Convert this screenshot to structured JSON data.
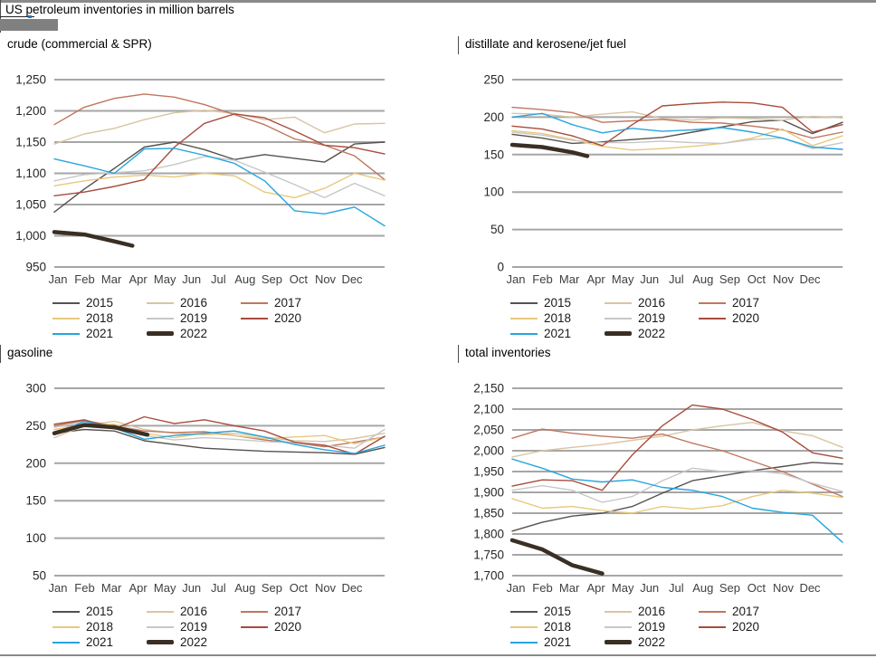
{
  "page": {
    "title": "US petroleum inventories in million barrels"
  },
  "months": [
    "Jan",
    "Feb",
    "Mar",
    "Apr",
    "May",
    "Jun",
    "Jul",
    "Aug",
    "Sep",
    "Oct",
    "Nov",
    "Dec"
  ],
  "colors": {
    "2015": "#57514d",
    "2016": "#d8c5a3",
    "2017": "#c0775f",
    "2018": "#e8c87d",
    "2019": "#c7c7c7",
    "2020": "#a84c3d",
    "2021": "#27a5dd",
    "2022": "#3a2f24",
    "grid": "#a6a6a6",
    "axis_text": "#262626",
    "month_text": "#404040"
  },
  "chart_data": [
    {
      "type": "line",
      "title": "crude (commercial & SPR)",
      "xlabel": "",
      "ylabel": "million barrels",
      "ylim": [
        950,
        1250
      ],
      "ytick_labels": [
        "1,250",
        "1,200",
        "1,150",
        "1,100",
        "1,050",
        "1,000",
        "950"
      ],
      "grid": true,
      "legend_position": "bottom",
      "series": [
        {
          "name": "2015",
          "values": [
            1038,
            1075,
            1108,
            1142,
            1150,
            1138,
            1122,
            1130,
            1124,
            1118,
            1147,
            1150
          ]
        },
        {
          "name": "2016",
          "values": [
            1147,
            1163,
            1172,
            1186,
            1197,
            1201,
            1196,
            1186,
            1190,
            1165,
            1179,
            1180
          ]
        },
        {
          "name": "2017",
          "values": [
            1178,
            1206,
            1220,
            1227,
            1222,
            1210,
            1194,
            1178,
            1155,
            1145,
            1128,
            1090
          ]
        },
        {
          "name": "2018",
          "values": [
            1080,
            1088,
            1094,
            1097,
            1094,
            1100,
            1096,
            1070,
            1061,
            1076,
            1100,
            1089
          ]
        },
        {
          "name": "2019",
          "values": [
            1088,
            1098,
            1101,
            1104,
            1114,
            1127,
            1121,
            1102,
            1082,
            1061,
            1084,
            1064
          ]
        },
        {
          "name": "2020",
          "values": [
            1064,
            1070,
            1079,
            1090,
            1142,
            1180,
            1195,
            1189,
            1168,
            1145,
            1141,
            1131
          ]
        },
        {
          "name": "2021",
          "values": [
            1123,
            1112,
            1100,
            1139,
            1140,
            1129,
            1116,
            1088,
            1040,
            1035,
            1046,
            1016
          ]
        },
        {
          "name": "2022",
          "x": [
            0,
            1,
            2,
            2.6
          ],
          "values": [
            1006,
            1002,
            991,
            984
          ]
        }
      ]
    },
    {
      "type": "line",
      "title": "distillate and kerosene/jet fuel",
      "xlabel": "",
      "ylabel": "million barrels",
      "ylim": [
        0,
        250
      ],
      "ytick_labels": [
        "250",
        "200",
        "150",
        "100",
        "50",
        "0"
      ],
      "grid": true,
      "legend_position": "bottom",
      "series": [
        {
          "name": "2015",
          "values": [
            177,
            172,
            165,
            167,
            170,
            173,
            180,
            187,
            194,
            196,
            178,
            193
          ]
        },
        {
          "name": "2016",
          "values": [
            205,
            204,
            200,
            204,
            207,
            198,
            196,
            199,
            198,
            196,
            201,
            199
          ]
        },
        {
          "name": "2017",
          "values": [
            213,
            210,
            206,
            193,
            195,
            197,
            193,
            192,
            188,
            183,
            172,
            180
          ]
        },
        {
          "name": "2018",
          "values": [
            182,
            178,
            170,
            161,
            156,
            158,
            161,
            165,
            172,
            184,
            162,
            175
          ]
        },
        {
          "name": "2019",
          "values": [
            180,
            176,
            169,
            166,
            166,
            168,
            166,
            165,
            170,
            172,
            158,
            166
          ]
        },
        {
          "name": "2020",
          "values": [
            188,
            184,
            175,
            162,
            190,
            215,
            218,
            220,
            219,
            213,
            180,
            190
          ]
        },
        {
          "name": "2021",
          "values": [
            200,
            205,
            190,
            179,
            185,
            181,
            183,
            186,
            180,
            172,
            160,
            157
          ]
        },
        {
          "name": "2022",
          "x": [
            0,
            1,
            2,
            2.5
          ],
          "values": [
            163,
            160,
            153,
            148
          ]
        }
      ]
    },
    {
      "type": "line",
      "title": "gasoline",
      "xlabel": "",
      "ylabel": "million barrels",
      "ylim": [
        50,
        300
      ],
      "ytick_labels": [
        "300",
        "250",
        "200",
        "150",
        "100",
        "50"
      ],
      "grid": true,
      "legend_position": "bottom",
      "series": [
        {
          "name": "2015",
          "values": [
            240,
            245,
            243,
            230,
            225,
            220,
            218,
            216,
            215,
            214,
            212,
            221
          ]
        },
        {
          "name": "2016",
          "values": [
            234,
            250,
            256,
            245,
            240,
            238,
            240,
            235,
            230,
            229,
            233,
            240
          ]
        },
        {
          "name": "2017",
          "values": [
            250,
            257,
            250,
            243,
            241,
            242,
            237,
            231,
            227,
            222,
            228,
            235
          ]
        },
        {
          "name": "2018",
          "values": [
            245,
            251,
            252,
            240,
            234,
            240,
            237,
            233,
            235,
            237,
            226,
            235
          ]
        },
        {
          "name": "2019",
          "values": [
            248,
            255,
            246,
            237,
            231,
            234,
            232,
            229,
            227,
            224,
            220,
            245
          ]
        },
        {
          "name": "2020",
          "values": [
            252,
            258,
            246,
            262,
            253,
            258,
            250,
            243,
            228,
            224,
            212,
            236
          ]
        },
        {
          "name": "2021",
          "values": [
            238,
            256,
            247,
            232,
            237,
            240,
            243,
            235,
            225,
            218,
            213,
            224
          ]
        },
        {
          "name": "2022",
          "x": [
            0,
            1,
            2,
            3.1
          ],
          "values": [
            240,
            251,
            248,
            238
          ]
        }
      ]
    },
    {
      "type": "line",
      "title": "total inventories",
      "xlabel": "",
      "ylabel": "million barrels",
      "ylim": [
        1700,
        2150
      ],
      "ytick_labels": [
        "2,150",
        "2,100",
        "2,050",
        "2,000",
        "1,950",
        "1,900",
        "1,850",
        "1,800",
        "1,750",
        "1,700"
      ],
      "grid": true,
      "legend_position": "bottom",
      "series": [
        {
          "name": "2015",
          "values": [
            1807,
            1828,
            1843,
            1850,
            1866,
            1898,
            1928,
            1940,
            1952,
            1962,
            1972,
            1968
          ]
        },
        {
          "name": "2016",
          "values": [
            1985,
            2000,
            2008,
            2015,
            2025,
            2035,
            2050,
            2060,
            2068,
            2048,
            2036,
            2008
          ]
        },
        {
          "name": "2017",
          "values": [
            2030,
            2052,
            2042,
            2035,
            2030,
            2040,
            2018,
            2000,
            1975,
            1950,
            1920,
            1890
          ]
        },
        {
          "name": "2018",
          "values": [
            1885,
            1862,
            1866,
            1856,
            1850,
            1866,
            1860,
            1868,
            1890,
            1905,
            1898,
            1888
          ]
        },
        {
          "name": "2019",
          "values": [
            1905,
            1916,
            1905,
            1876,
            1890,
            1928,
            1958,
            1950,
            1952,
            1945,
            1922,
            1902
          ]
        },
        {
          "name": "2020",
          "values": [
            1915,
            1930,
            1928,
            1905,
            1990,
            2060,
            2110,
            2100,
            2075,
            2045,
            1995,
            1982
          ]
        },
        {
          "name": "2021",
          "values": [
            1980,
            1958,
            1932,
            1925,
            1930,
            1912,
            1905,
            1890,
            1862,
            1852,
            1845,
            1780
          ]
        },
        {
          "name": "2022",
          "x": [
            0,
            1,
            2,
            3
          ],
          "values": [
            1785,
            1763,
            1725,
            1705
          ]
        }
      ]
    }
  ]
}
